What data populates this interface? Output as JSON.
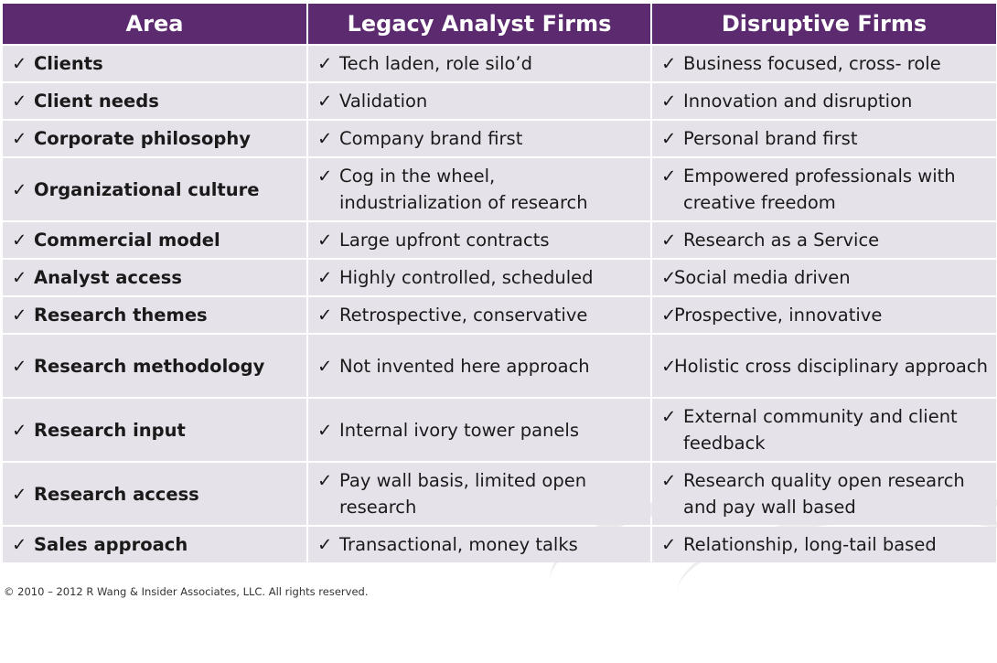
{
  "header": {
    "col1": "Area",
    "col2": "Legacy Analyst Firms",
    "col3": "Disruptive Firms"
  },
  "check_glyph": "✓",
  "rows": [
    {
      "area": "Clients",
      "legacy": "Tech laden, role silo’d",
      "disruptive": "Business focused, cross- role"
    },
    {
      "area": "Client needs",
      "legacy": "Validation",
      "disruptive": "Innovation and disruption"
    },
    {
      "area": "Corporate philosophy",
      "legacy": "Company brand first",
      "disruptive": "Personal brand first"
    },
    {
      "area": "Organizational culture",
      "legacy": "Cog in the wheel, industrialization of research",
      "disruptive": "Empowered professionals with creative freedom"
    },
    {
      "area": "Commercial model",
      "legacy": "Large upfront contracts",
      "disruptive": "Research as a Service"
    },
    {
      "area": "Analyst access",
      "legacy": "Highly controlled, scheduled",
      "disruptive": "Social media driven"
    },
    {
      "area": "Research themes",
      "legacy": "Retrospective, conservative",
      "disruptive": "Prospective, innovative"
    },
    {
      "area": "Research methodology",
      "legacy": "Not invented here approach",
      "disruptive": "Holistic cross disciplinary approach"
    },
    {
      "area": "Research input",
      "legacy": "Internal ivory tower panels",
      "disruptive": "External community and client feedback"
    },
    {
      "area": "Research access",
      "legacy": "Pay wall basis, limited open research",
      "disruptive": "Research quality open research and pay wall based"
    },
    {
      "area": "Sales approach",
      "legacy": "Transactional, money talks",
      "disruptive": "Relationship, long-tail based"
    }
  ],
  "footer": "© 2010 – 2012 R Wang & Insider Associates, LLC.  All rights reserved.",
  "colors": {
    "header_bg": "#5c2a6e",
    "cell_bg": "#e6e2ea",
    "header_text": "#ffffff"
  }
}
